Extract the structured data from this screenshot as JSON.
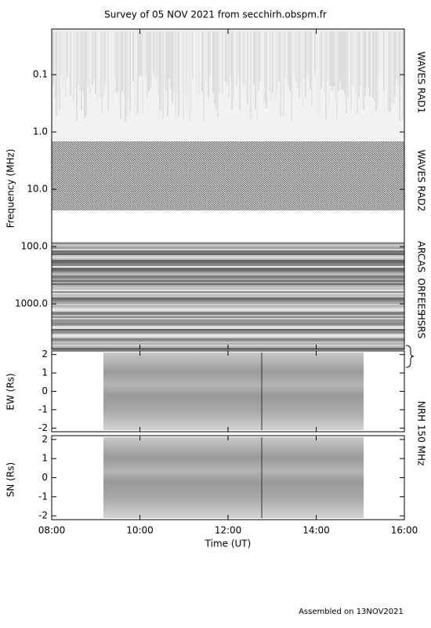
{
  "title": "Survey of 05 NOV 2021 from secchirh.obspm.fr",
  "footer": "Assembled on 13NOV2021",
  "chart_data": [
    {
      "type": "spectrogram",
      "ylabel": "Frequency (MHz)",
      "log_scale": true,
      "invert_y": true,
      "ylim": [
        0.016,
        6200
      ],
      "yticks": [
        0.1,
        {
          "value": 1,
          "label": "1.0"
        },
        {
          "value": 10,
          "label": "10.0"
        },
        {
          "value": 100,
          "label": "100.0"
        },
        {
          "value": 1000,
          "label": "1000.0"
        }
      ],
      "instrument_labels": [
        "WAVES RAD1",
        "WAVES RAD2",
        "ARCAS",
        "ORFEES",
        "HSRS"
      ]
    },
    {
      "type": "image",
      "ylabel": "EW (Rs)",
      "annotation": "NRH 150 MHz",
      "ylim": [
        -2.2,
        2.2
      ],
      "yticks": [
        -2,
        -1,
        0,
        1,
        2
      ]
    },
    {
      "type": "image",
      "ylabel": "SN (Rs)",
      "xlabel": "Time (UT)",
      "ylim": [
        -2.2,
        2.2
      ],
      "yticks": [
        -2,
        -1,
        0,
        1,
        2
      ],
      "xlim": [
        8,
        16
      ],
      "xticks": [
        {
          "value": 8,
          "label": "08:00"
        },
        {
          "value": 10,
          "label": "10:00"
        },
        {
          "value": 12,
          "label": "12:00"
        },
        {
          "value": 14,
          "label": "14:00"
        },
        {
          "value": 16,
          "label": "16:00"
        }
      ]
    }
  ]
}
